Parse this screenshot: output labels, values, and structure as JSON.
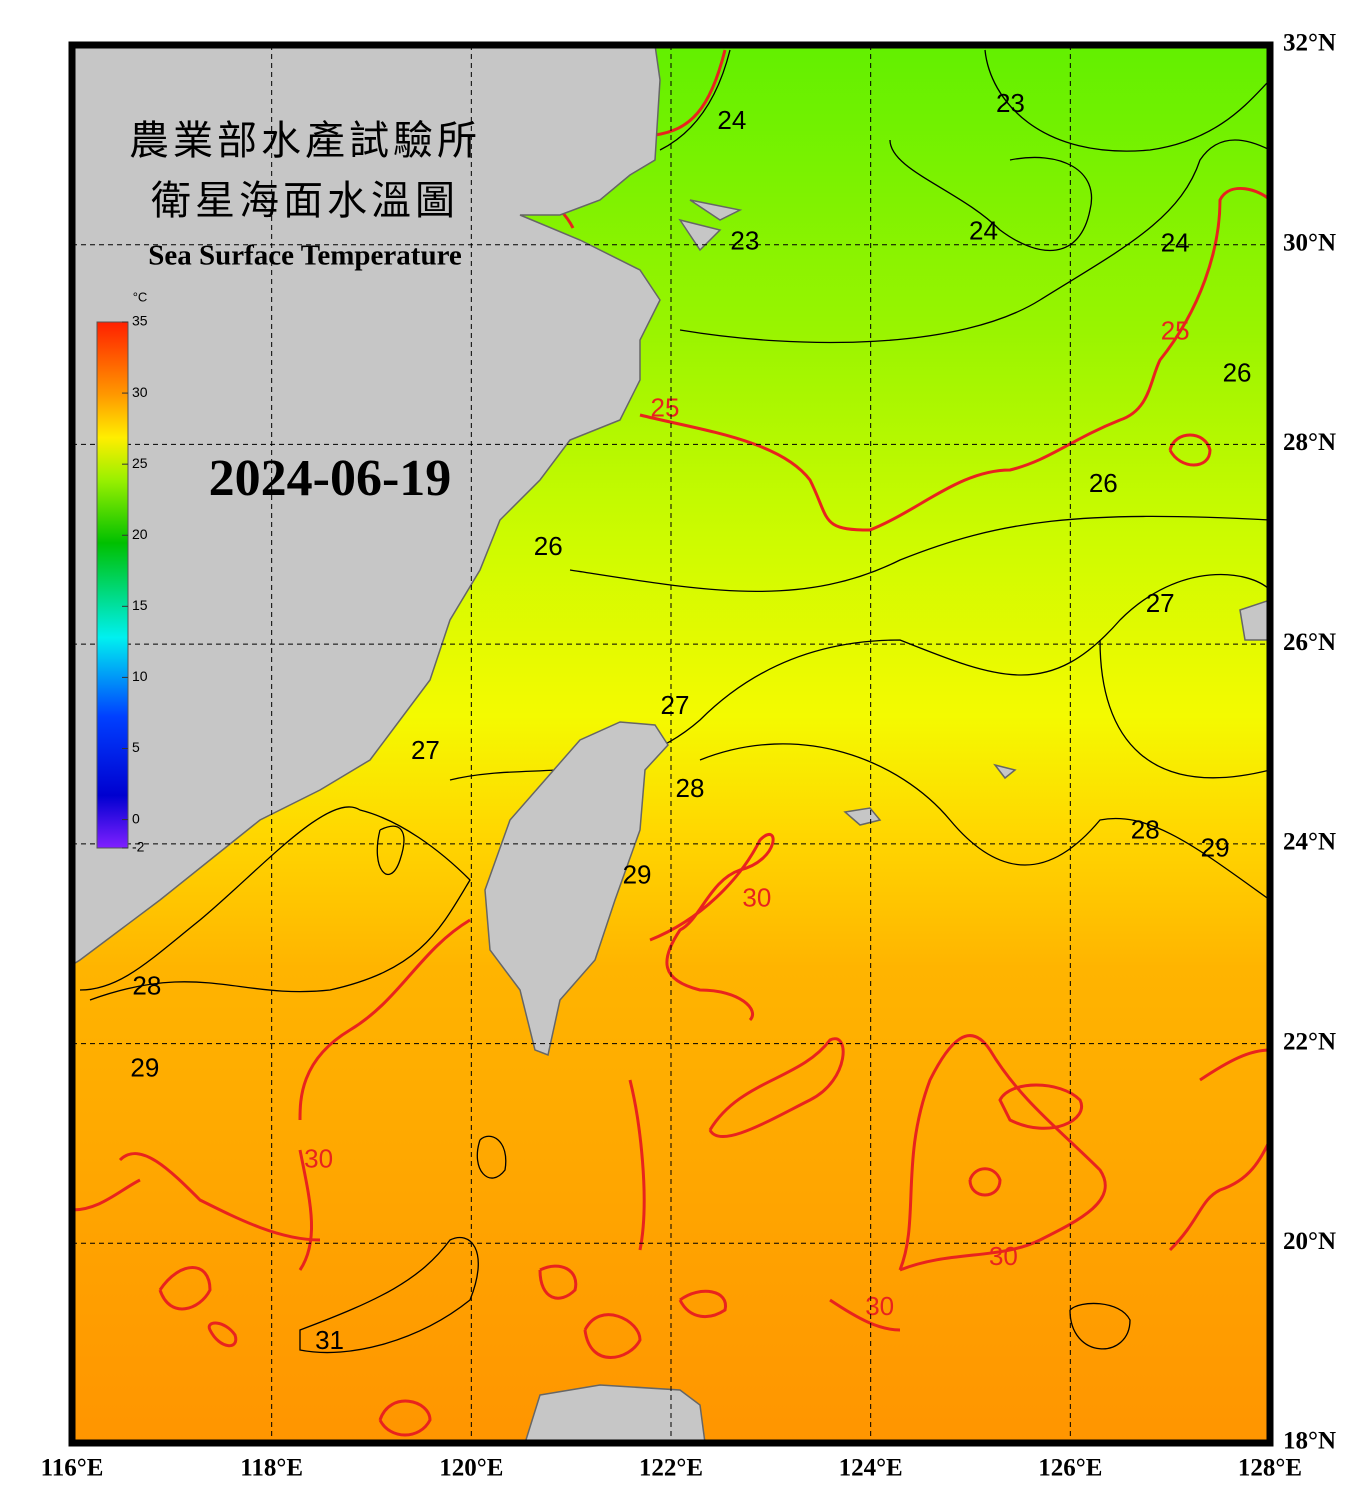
{
  "header": {
    "title_zh": [
      "農業部水產試驗所",
      "衛星海面水溫圖"
    ],
    "title_en": "Sea Surface Temperature",
    "date": "2024-06-19"
  },
  "colorbar": {
    "unit": "°C",
    "range": [
      -2,
      35
    ],
    "ticks": [
      35,
      30,
      25,
      20,
      15,
      10,
      5,
      0,
      -2
    ]
  },
  "map": {
    "lonlim": [
      116,
      128
    ],
    "latlim": [
      18,
      32
    ],
    "lon_ticks": [
      {
        "value": 116,
        "label": "116°E"
      },
      {
        "value": 118,
        "label": "118°E"
      },
      {
        "value": 120,
        "label": "120°E"
      },
      {
        "value": 122,
        "label": "122°E"
      },
      {
        "value": 124,
        "label": "124°E"
      },
      {
        "value": 126,
        "label": "126°E"
      },
      {
        "value": 128,
        "label": "128°E"
      }
    ],
    "lat_ticks": [
      {
        "value": 32,
        "label": "32°N"
      },
      {
        "value": 30,
        "label": "30°N"
      },
      {
        "value": 28,
        "label": "28°N"
      },
      {
        "value": 26,
        "label": "26°N"
      },
      {
        "value": 24,
        "label": "24°N"
      },
      {
        "value": 22,
        "label": "22°N"
      },
      {
        "value": 20,
        "label": "20°N"
      },
      {
        "value": 18,
        "label": "18°N"
      }
    ],
    "contour_labels": [
      {
        "value": 23,
        "lon": 125.4,
        "lat": 31.4,
        "color": "#000000"
      },
      {
        "value": 24,
        "lon": 122.61,
        "lat": 31.23,
        "color": "#000000"
      },
      {
        "value": 23,
        "lon": 122.74,
        "lat": 30.02,
        "color": "#000000"
      },
      {
        "value": 24,
        "lon": 125.13,
        "lat": 30.12,
        "color": "#000000"
      },
      {
        "value": 24,
        "lon": 127.05,
        "lat": 30.0,
        "color": "#000000"
      },
      {
        "value": 25,
        "lon": 127.05,
        "lat": 29.12,
        "color": "#e8231e"
      },
      {
        "value": 25,
        "lon": 121.94,
        "lat": 28.35,
        "color": "#e8231e"
      },
      {
        "value": 26,
        "lon": 127.67,
        "lat": 28.7,
        "color": "#000000"
      },
      {
        "value": 26,
        "lon": 126.33,
        "lat": 27.59,
        "color": "#000000"
      },
      {
        "value": 26,
        "lon": 120.77,
        "lat": 26.96,
        "color": "#000000"
      },
      {
        "value": 27,
        "lon": 126.9,
        "lat": 26.39,
        "color": "#000000"
      },
      {
        "value": 27,
        "lon": 122.04,
        "lat": 25.37,
        "color": "#000000"
      },
      {
        "value": 27,
        "lon": 119.54,
        "lat": 24.92,
        "color": "#000000"
      },
      {
        "value": 28,
        "lon": 122.19,
        "lat": 24.54,
        "color": "#000000"
      },
      {
        "value": 28,
        "lon": 126.75,
        "lat": 24.12,
        "color": "#000000"
      },
      {
        "value": 29,
        "lon": 127.45,
        "lat": 23.94,
        "color": "#000000"
      },
      {
        "value": 29,
        "lon": 121.66,
        "lat": 23.67,
        "color": "#000000"
      },
      {
        "value": 30,
        "lon": 122.86,
        "lat": 23.44,
        "color": "#e8231e"
      },
      {
        "value": 28,
        "lon": 116.75,
        "lat": 22.56,
        "color": "#000000"
      },
      {
        "value": 29,
        "lon": 116.73,
        "lat": 21.74,
        "color": "#000000"
      },
      {
        "value": 30,
        "lon": 118.47,
        "lat": 20.83,
        "color": "#e8231e"
      },
      {
        "value": 30,
        "lon": 125.33,
        "lat": 19.85,
        "color": "#e8231e"
      },
      {
        "value": 30,
        "lon": 124.09,
        "lat": 19.35,
        "color": "#e8231e"
      },
      {
        "value": 31,
        "lon": 118.58,
        "lat": 19.01,
        "color": "#000000"
      }
    ]
  }
}
